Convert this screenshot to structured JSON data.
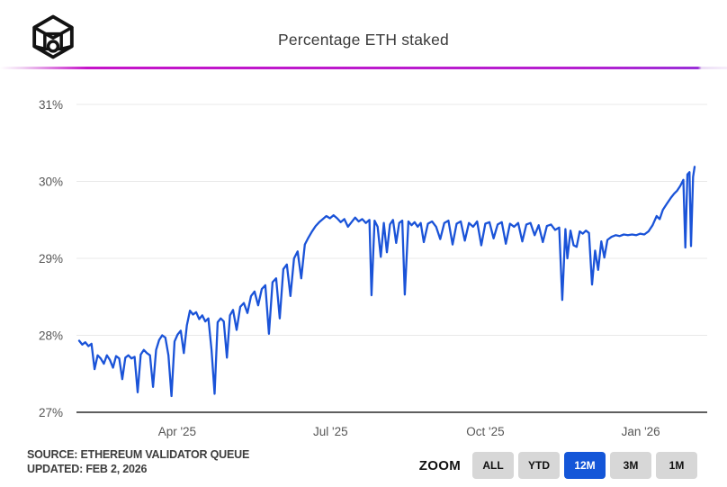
{
  "header": {
    "title": "Percentage ETH staked",
    "logo_icon": "cube-block-icon"
  },
  "accent_bar_color": "#c513c9",
  "chart_data": {
    "type": "line",
    "title": "Percentage ETH staked",
    "series_name": "Percentage ETH staked",
    "line_color": "#1a53d8",
    "grid": true,
    "axis_color": "#2a2a2a",
    "gridline_color": "#e8e8e8",
    "x_unit": "months since Feb 2, 2025",
    "xlim": [
      0,
      12
    ],
    "ylim": [
      27,
      31
    ],
    "yticks": [
      {
        "label": "31%",
        "value": 31
      },
      {
        "label": "30%",
        "value": 30
      },
      {
        "label": "29%",
        "value": 29
      },
      {
        "label": "28%",
        "value": 28
      },
      {
        "label": "27%",
        "value": 27
      }
    ],
    "xticks": [
      {
        "label": "Apr '25",
        "t": 1.91
      },
      {
        "label": "Jul '25",
        "t": 4.9
      },
      {
        "label": "Oct '25",
        "t": 7.92
      },
      {
        "label": "Jan '26",
        "t": 10.95
      }
    ],
    "points": [
      [
        0.0,
        27.93
      ],
      [
        0.06,
        27.88
      ],
      [
        0.12,
        27.91
      ],
      [
        0.18,
        27.86
      ],
      [
        0.24,
        27.89
      ],
      [
        0.3,
        27.56
      ],
      [
        0.36,
        27.74
      ],
      [
        0.42,
        27.7
      ],
      [
        0.48,
        27.63
      ],
      [
        0.54,
        27.74
      ],
      [
        0.6,
        27.68
      ],
      [
        0.66,
        27.58
      ],
      [
        0.72,
        27.73
      ],
      [
        0.78,
        27.7
      ],
      [
        0.84,
        27.43
      ],
      [
        0.9,
        27.71
      ],
      [
        0.96,
        27.74
      ],
      [
        1.02,
        27.7
      ],
      [
        1.08,
        27.72
      ],
      [
        1.14,
        27.26
      ],
      [
        1.2,
        27.75
      ],
      [
        1.26,
        27.81
      ],
      [
        1.32,
        27.77
      ],
      [
        1.38,
        27.74
      ],
      [
        1.44,
        27.33
      ],
      [
        1.5,
        27.81
      ],
      [
        1.56,
        27.94
      ],
      [
        1.62,
        28.0
      ],
      [
        1.68,
        27.97
      ],
      [
        1.74,
        27.74
      ],
      [
        1.8,
        27.21
      ],
      [
        1.86,
        27.92
      ],
      [
        1.92,
        28.01
      ],
      [
        1.98,
        28.06
      ],
      [
        2.04,
        27.77
      ],
      [
        2.1,
        28.13
      ],
      [
        2.16,
        28.32
      ],
      [
        2.22,
        28.27
      ],
      [
        2.28,
        28.3
      ],
      [
        2.34,
        28.21
      ],
      [
        2.4,
        28.26
      ],
      [
        2.46,
        28.18
      ],
      [
        2.52,
        28.22
      ],
      [
        2.58,
        27.81
      ],
      [
        2.64,
        27.24
      ],
      [
        2.7,
        28.17
      ],
      [
        2.76,
        28.22
      ],
      [
        2.82,
        28.18
      ],
      [
        2.88,
        27.71
      ],
      [
        2.94,
        28.26
      ],
      [
        3.0,
        28.33
      ],
      [
        3.07,
        28.07
      ],
      [
        3.14,
        28.37
      ],
      [
        3.21,
        28.42
      ],
      [
        3.28,
        28.29
      ],
      [
        3.35,
        28.51
      ],
      [
        3.42,
        28.57
      ],
      [
        3.49,
        28.39
      ],
      [
        3.56,
        28.6
      ],
      [
        3.63,
        28.65
      ],
      [
        3.7,
        28.02
      ],
      [
        3.77,
        28.69
      ],
      [
        3.84,
        28.74
      ],
      [
        3.91,
        28.22
      ],
      [
        3.98,
        28.86
      ],
      [
        4.05,
        28.92
      ],
      [
        4.12,
        28.51
      ],
      [
        4.19,
        29.0
      ],
      [
        4.26,
        29.09
      ],
      [
        4.33,
        28.74
      ],
      [
        4.4,
        29.18
      ],
      [
        4.47,
        29.27
      ],
      [
        4.54,
        29.35
      ],
      [
        4.61,
        29.42
      ],
      [
        4.68,
        29.47
      ],
      [
        4.75,
        29.51
      ],
      [
        4.82,
        29.55
      ],
      [
        4.89,
        29.52
      ],
      [
        4.96,
        29.56
      ],
      [
        5.03,
        29.52
      ],
      [
        5.1,
        29.47
      ],
      [
        5.17,
        29.51
      ],
      [
        5.24,
        29.41
      ],
      [
        5.31,
        29.47
      ],
      [
        5.38,
        29.53
      ],
      [
        5.45,
        29.48
      ],
      [
        5.52,
        29.51
      ],
      [
        5.59,
        29.46
      ],
      [
        5.66,
        29.5
      ],
      [
        5.7,
        28.52
      ],
      [
        5.76,
        29.49
      ],
      [
        5.82,
        29.41
      ],
      [
        5.88,
        29.02
      ],
      [
        5.94,
        29.46
      ],
      [
        6.0,
        29.08
      ],
      [
        6.06,
        29.44
      ],
      [
        6.12,
        29.5
      ],
      [
        6.18,
        29.2
      ],
      [
        6.24,
        29.46
      ],
      [
        6.3,
        29.49
      ],
      [
        6.35,
        28.53
      ],
      [
        6.42,
        29.48
      ],
      [
        6.48,
        29.43
      ],
      [
        6.54,
        29.47
      ],
      [
        6.6,
        29.41
      ],
      [
        6.66,
        29.46
      ],
      [
        6.72,
        29.21
      ],
      [
        6.8,
        29.45
      ],
      [
        6.88,
        29.48
      ],
      [
        6.96,
        29.41
      ],
      [
        7.04,
        29.25
      ],
      [
        7.12,
        29.46
      ],
      [
        7.2,
        29.49
      ],
      [
        7.28,
        29.18
      ],
      [
        7.36,
        29.45
      ],
      [
        7.44,
        29.48
      ],
      [
        7.52,
        29.23
      ],
      [
        7.6,
        29.46
      ],
      [
        7.68,
        29.41
      ],
      [
        7.76,
        29.48
      ],
      [
        7.84,
        29.17
      ],
      [
        7.92,
        29.45
      ],
      [
        8.0,
        29.47
      ],
      [
        8.08,
        29.26
      ],
      [
        8.16,
        29.44
      ],
      [
        8.24,
        29.47
      ],
      [
        8.32,
        29.19
      ],
      [
        8.4,
        29.45
      ],
      [
        8.48,
        29.41
      ],
      [
        8.56,
        29.46
      ],
      [
        8.64,
        29.22
      ],
      [
        8.72,
        29.44
      ],
      [
        8.8,
        29.46
      ],
      [
        8.88,
        29.3
      ],
      [
        8.96,
        29.43
      ],
      [
        9.04,
        29.21
      ],
      [
        9.12,
        29.42
      ],
      [
        9.2,
        29.44
      ],
      [
        9.28,
        29.37
      ],
      [
        9.36,
        29.4
      ],
      [
        9.42,
        28.46
      ],
      [
        9.48,
        29.38
      ],
      [
        9.52,
        29.0
      ],
      [
        9.58,
        29.36
      ],
      [
        9.64,
        29.17
      ],
      [
        9.7,
        29.15
      ],
      [
        9.76,
        29.35
      ],
      [
        9.82,
        29.32
      ],
      [
        9.88,
        29.36
      ],
      [
        9.94,
        29.33
      ],
      [
        10.0,
        28.66
      ],
      [
        10.06,
        29.1
      ],
      [
        10.12,
        28.85
      ],
      [
        10.18,
        29.22
      ],
      [
        10.24,
        29.01
      ],
      [
        10.3,
        29.24
      ],
      [
        10.38,
        29.28
      ],
      [
        10.46,
        29.3
      ],
      [
        10.54,
        29.29
      ],
      [
        10.62,
        29.31
      ],
      [
        10.7,
        29.3
      ],
      [
        10.78,
        29.31
      ],
      [
        10.86,
        29.3
      ],
      [
        10.94,
        29.32
      ],
      [
        11.02,
        29.31
      ],
      [
        11.1,
        29.35
      ],
      [
        11.18,
        29.43
      ],
      [
        11.26,
        29.55
      ],
      [
        11.32,
        29.51
      ],
      [
        11.38,
        29.63
      ],
      [
        11.46,
        29.71
      ],
      [
        11.54,
        29.79
      ],
      [
        11.6,
        29.84
      ],
      [
        11.66,
        29.88
      ],
      [
        11.72,
        29.94
      ],
      [
        11.78,
        30.02
      ],
      [
        11.82,
        29.14
      ],
      [
        11.86,
        30.09
      ],
      [
        11.9,
        30.12
      ],
      [
        11.93,
        29.16
      ],
      [
        11.97,
        30.06
      ],
      [
        12.0,
        30.19
      ]
    ]
  },
  "footer": {
    "source_line1": "SOURCE: ETHEREUM VALIDATOR QUEUE",
    "source_line2": "UPDATED: FEB 2, 2026",
    "zoom_label": "ZOOM",
    "active_color": "#1456d8",
    "zoom_buttons": [
      {
        "label": "ALL",
        "active": false
      },
      {
        "label": "YTD",
        "active": false
      },
      {
        "label": "12M",
        "active": true
      },
      {
        "label": "3M",
        "active": false
      },
      {
        "label": "1M",
        "active": false
      }
    ]
  }
}
